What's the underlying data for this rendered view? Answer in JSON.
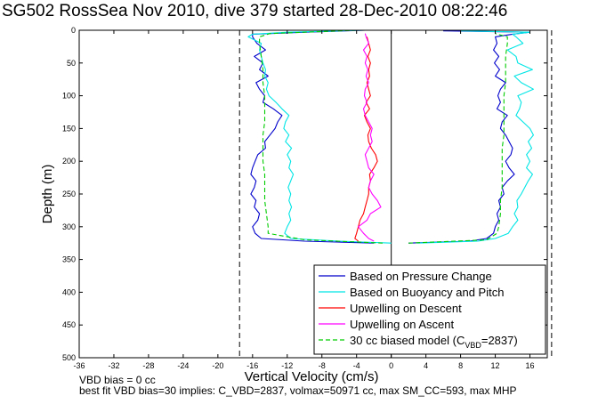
{
  "chart_data": {
    "type": "line",
    "title": "SG502 RossSea Nov 2010, dive 379 started 28-Dec-2010 08:22:46",
    "xlabel": "Vertical Velocity (cm/s)",
    "ylabel": "Depth (m)",
    "xlim": [
      -36,
      18
    ],
    "ylim": [
      500,
      0
    ],
    "x_ticks": [
      "-36",
      "-32",
      "-28",
      "-24",
      "-20",
      "-16",
      "-12",
      "-8",
      "-4",
      "0",
      "4",
      "8",
      "12",
      "16"
    ],
    "y_ticks": [
      "0",
      "50",
      "100",
      "150",
      "200",
      "250",
      "300",
      "350",
      "400",
      "450",
      "500"
    ],
    "grid": false,
    "legend_position": "bottom-right",
    "reference_lines": {
      "vertical_dashed": [
        -17.5,
        18.5
      ],
      "vertical_solid": [
        0
      ]
    },
    "series": [
      {
        "name": "Based on Pressure Change",
        "color": "#0000cc",
        "style": "solid",
        "branches": [
          {
            "depth": [
              0,
              3,
              6,
              10,
              20,
              30,
              40,
              50,
              60,
              70,
              80,
              90,
              100,
              110,
              120,
              130,
              140,
              150,
              160,
              170,
              180,
              190,
              200,
              210,
              220,
              230,
              240,
              250,
              260,
              270,
              280,
              290,
              300,
              310,
              318,
              322,
              325
            ],
            "velocity": [
              -3,
              -10,
              -16,
              -16,
              -15.5,
              -14.5,
              -15.8,
              -14.8,
              -15.2,
              -14.2,
              -15.6,
              -15.2,
              -14.6,
              -14.8,
              -13.6,
              -12.6,
              -13.1,
              -13.4,
              -14,
              -14.6,
              -14.5,
              -15.4,
              -15.7,
              -16,
              -16.2,
              -15.6,
              -15.8,
              -16.2,
              -15.6,
              -15.8,
              -15.2,
              -15.4,
              -16,
              -15.7,
              -15,
              -10,
              -2
            ]
          },
          {
            "depth": [
              325,
              322,
              318,
              310,
              300,
              290,
              280,
              270,
              260,
              250,
              240,
              230,
              220,
              210,
              200,
              190,
              180,
              170,
              160,
              150,
              140,
              130,
              120,
              110,
              100,
              90,
              80,
              70,
              60,
              50,
              40,
              30,
              20,
              10,
              6,
              3,
              1
            ],
            "velocity": [
              2,
              9,
              11,
              11.8,
              12,
              12.4,
              12.2,
              12.6,
              12.4,
              13,
              12.8,
              13.4,
              14.2,
              13.6,
              13.2,
              13.8,
              14,
              13.6,
              13.2,
              12.6,
              12.8,
              13.4,
              12.2,
              12.6,
              12.3,
              12.6,
              13.2,
              12,
              12.5,
              11.9,
              12.4,
              11.8,
              12.2,
              12,
              14,
              16,
              6
            ]
          }
        ]
      },
      {
        "name": "Based on Buoyancy and Pitch",
        "color": "#00e5e5",
        "style": "solid",
        "branches": [
          {
            "depth": [
              0,
              3,
              6,
              10,
              20,
              30,
              40,
              50,
              60,
              70,
              80,
              90,
              100,
              110,
              120,
              130,
              140,
              150,
              160,
              170,
              180,
              190,
              200,
              210,
              220,
              230,
              240,
              250,
              260,
              270,
              280,
              290,
              300,
              310,
              318,
              322,
              325
            ],
            "velocity": [
              -3,
              -12,
              -16,
              -16.5,
              -15,
              -15.2,
              -15,
              -14.8,
              -14.5,
              -14.6,
              -14.2,
              -14.4,
              -14.1,
              -13.3,
              -12.6,
              -11.8,
              -12.2,
              -12.4,
              -11.8,
              -12.2,
              -11.5,
              -12,
              -11.6,
              -11.8,
              -11.3,
              -11.6,
              -11.9,
              -11.6,
              -11.8,
              -11.5,
              -11.8,
              -11.6,
              -12,
              -12.3,
              -11.6,
              -6,
              0
            ]
          },
          {
            "depth": [
              325,
              322,
              318,
              310,
              300,
              290,
              280,
              270,
              260,
              250,
              240,
              230,
              220,
              210,
              200,
              190,
              180,
              170,
              160,
              150,
              140,
              130,
              120,
              110,
              100,
              90,
              80,
              70,
              60,
              50,
              40,
              30,
              20,
              10,
              6,
              3,
              1
            ],
            "velocity": [
              3,
              10,
              12,
              13.5,
              14,
              14.6,
              14.2,
              14.6,
              14.5,
              15,
              15.4,
              15.8,
              16.3,
              15.6,
              16,
              15.6,
              16.2,
              15.8,
              16.4,
              16,
              15.2,
              14.4,
              14.8,
              15,
              14.6,
              16.4,
              15,
              14.2,
              16.3,
              14.6,
              14.4,
              13.4,
              15.2,
              14.4,
              14,
              16,
              8
            ]
          }
        ]
      },
      {
        "name": "Upwelling on Descent",
        "color": "#ff0000",
        "style": "solid",
        "branches": [
          {
            "depth": [
              10,
              20,
              30,
              40,
              50,
              60,
              70,
              80,
              90,
              100,
              110,
              120,
              130,
              140,
              150,
              160,
              170,
              180,
              190,
              200,
              210,
              220,
              230,
              240,
              250,
              260,
              270,
              280,
              290,
              300,
              310,
              318,
              322
            ],
            "velocity": [
              -2.8,
              -2.6,
              -2.4,
              -2.7,
              -2.4,
              -2.6,
              -2.5,
              -2.8,
              -2.6,
              -2.4,
              -2.9,
              -2.5,
              -3.1,
              -2.8,
              -2.4,
              -2.7,
              -2.6,
              -2.3,
              -1.8,
              -1.6,
              -2,
              -2.5,
              -2.4,
              -2.6,
              -2.6,
              -2.8,
              -3,
              -3.2,
              -3.6,
              -3.8,
              -4,
              -4.2,
              -3.8
            ]
          }
        ]
      },
      {
        "name": "Upwelling on Ascent",
        "color": "#ff00ff",
        "style": "solid",
        "branches": [
          {
            "depth": [
              322,
              318,
              310,
              300,
              290,
              280,
              270,
              260,
              250,
              240,
              230,
              220,
              210,
              200,
              190,
              180,
              170,
              160,
              150,
              140,
              130,
              120,
              110,
              100,
              90,
              80,
              70,
              60,
              50,
              40,
              30,
              20,
              10,
              5
            ],
            "velocity": [
              -2,
              -2.6,
              -3.2,
              -3.8,
              -2.8,
              -2.4,
              -1.2,
              -1.6,
              -2.2,
              -2.6,
              -2.4,
              -2,
              -2.6,
              -2.8,
              -3,
              -2.6,
              -2.2,
              -2.4,
              -2.2,
              -2.6,
              -3,
              -3.2,
              -2.8,
              -3.1,
              -3,
              -2.6,
              -2.9,
              -2.7,
              -3,
              -2.8,
              -3.2,
              -2.6,
              -2.9,
              -3
            ]
          }
        ]
      },
      {
        "name": "30 cc biased model (C_VBD=2837)",
        "color": "#00cc00",
        "style": "dashed",
        "branches": [
          {
            "depth": [
              0,
              5,
              10,
              20,
              40,
              60,
              80,
              100,
              120,
              140,
              160,
              180,
              200,
              220,
              240,
              260,
              280,
              300,
              310,
              320,
              325
            ],
            "velocity": [
              -4,
              -14,
              -15.2,
              -15.2,
              -15,
              -14.8,
              -14.8,
              -14.6,
              -14.6,
              -14.6,
              -14.8,
              -14.8,
              -14.8,
              -14.6,
              -14.6,
              -14.6,
              -14.4,
              -14.2,
              -14.2,
              -10,
              -1
            ]
          },
          {
            "depth": [
              325,
              320,
              310,
              300,
              280,
              260,
              240,
              220,
              200,
              180,
              160,
              140,
              120,
              100,
              80,
              60,
              40,
              20,
              10,
              5
            ],
            "velocity": [
              2,
              11,
              12.2,
              12.4,
              12.6,
              12.6,
              12.8,
              12.8,
              12.8,
              12.8,
              13,
              13,
              13,
              13,
              13.2,
              13.2,
              13.2,
              13.4,
              13.4,
              12
            ]
          }
        ]
      }
    ]
  },
  "legend": {
    "entries": [
      {
        "series": 0,
        "label": "Based on Pressure Change"
      },
      {
        "series": 1,
        "label": "Based on Buoyancy and Pitch"
      },
      {
        "series": 2,
        "label": "Upwelling on Descent"
      },
      {
        "series": 3,
        "label": "Upwelling on Ascent"
      }
    ],
    "model_entry": {
      "series": 4,
      "prefix": "30 cc biased model (C",
      "subscript": "VBD",
      "suffix": "=2837)"
    }
  },
  "footer": {
    "line1": "VBD bias = 0 cc",
    "line2": "best fit VBD bias=30 implies: C_VBD=2837, volmax=50971 cc, max SM_CC=593, max MHP"
  }
}
